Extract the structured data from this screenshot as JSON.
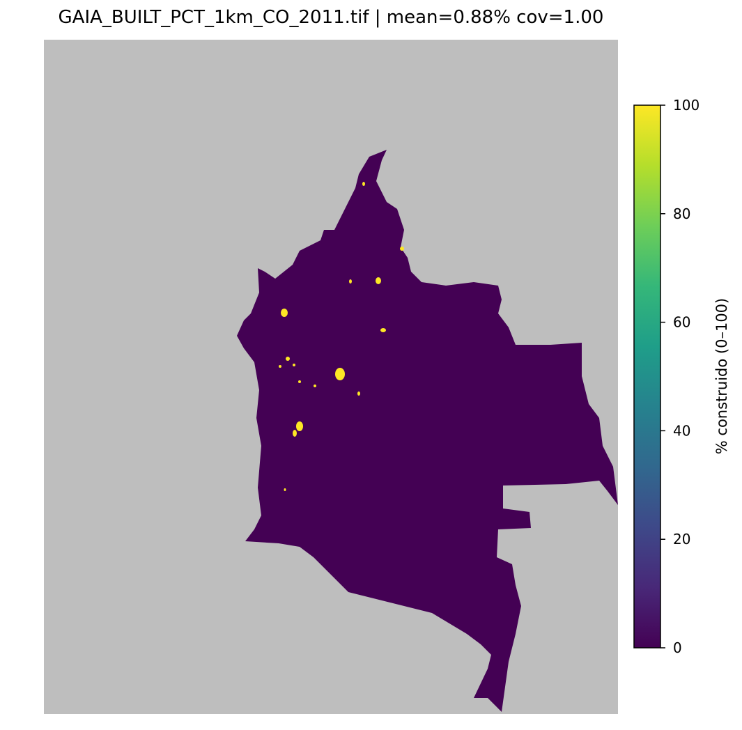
{
  "map": {
    "title": "GAIA_BUILT_PCT_1km_CO_2011.tif | mean=0.88%  cov=1.00",
    "colorbar": {
      "label": "% construido (0–100)",
      "lim": [
        0,
        100
      ],
      "ticks": [
        0,
        20,
        40,
        60,
        80,
        100
      ],
      "colors": [
        "#440154",
        "#482878",
        "#3e4989",
        "#31688e",
        "#26828e",
        "#1f9e89",
        "#35b779",
        "#6ece58",
        "#b5de2b",
        "#fde725"
      ]
    }
  }
}
